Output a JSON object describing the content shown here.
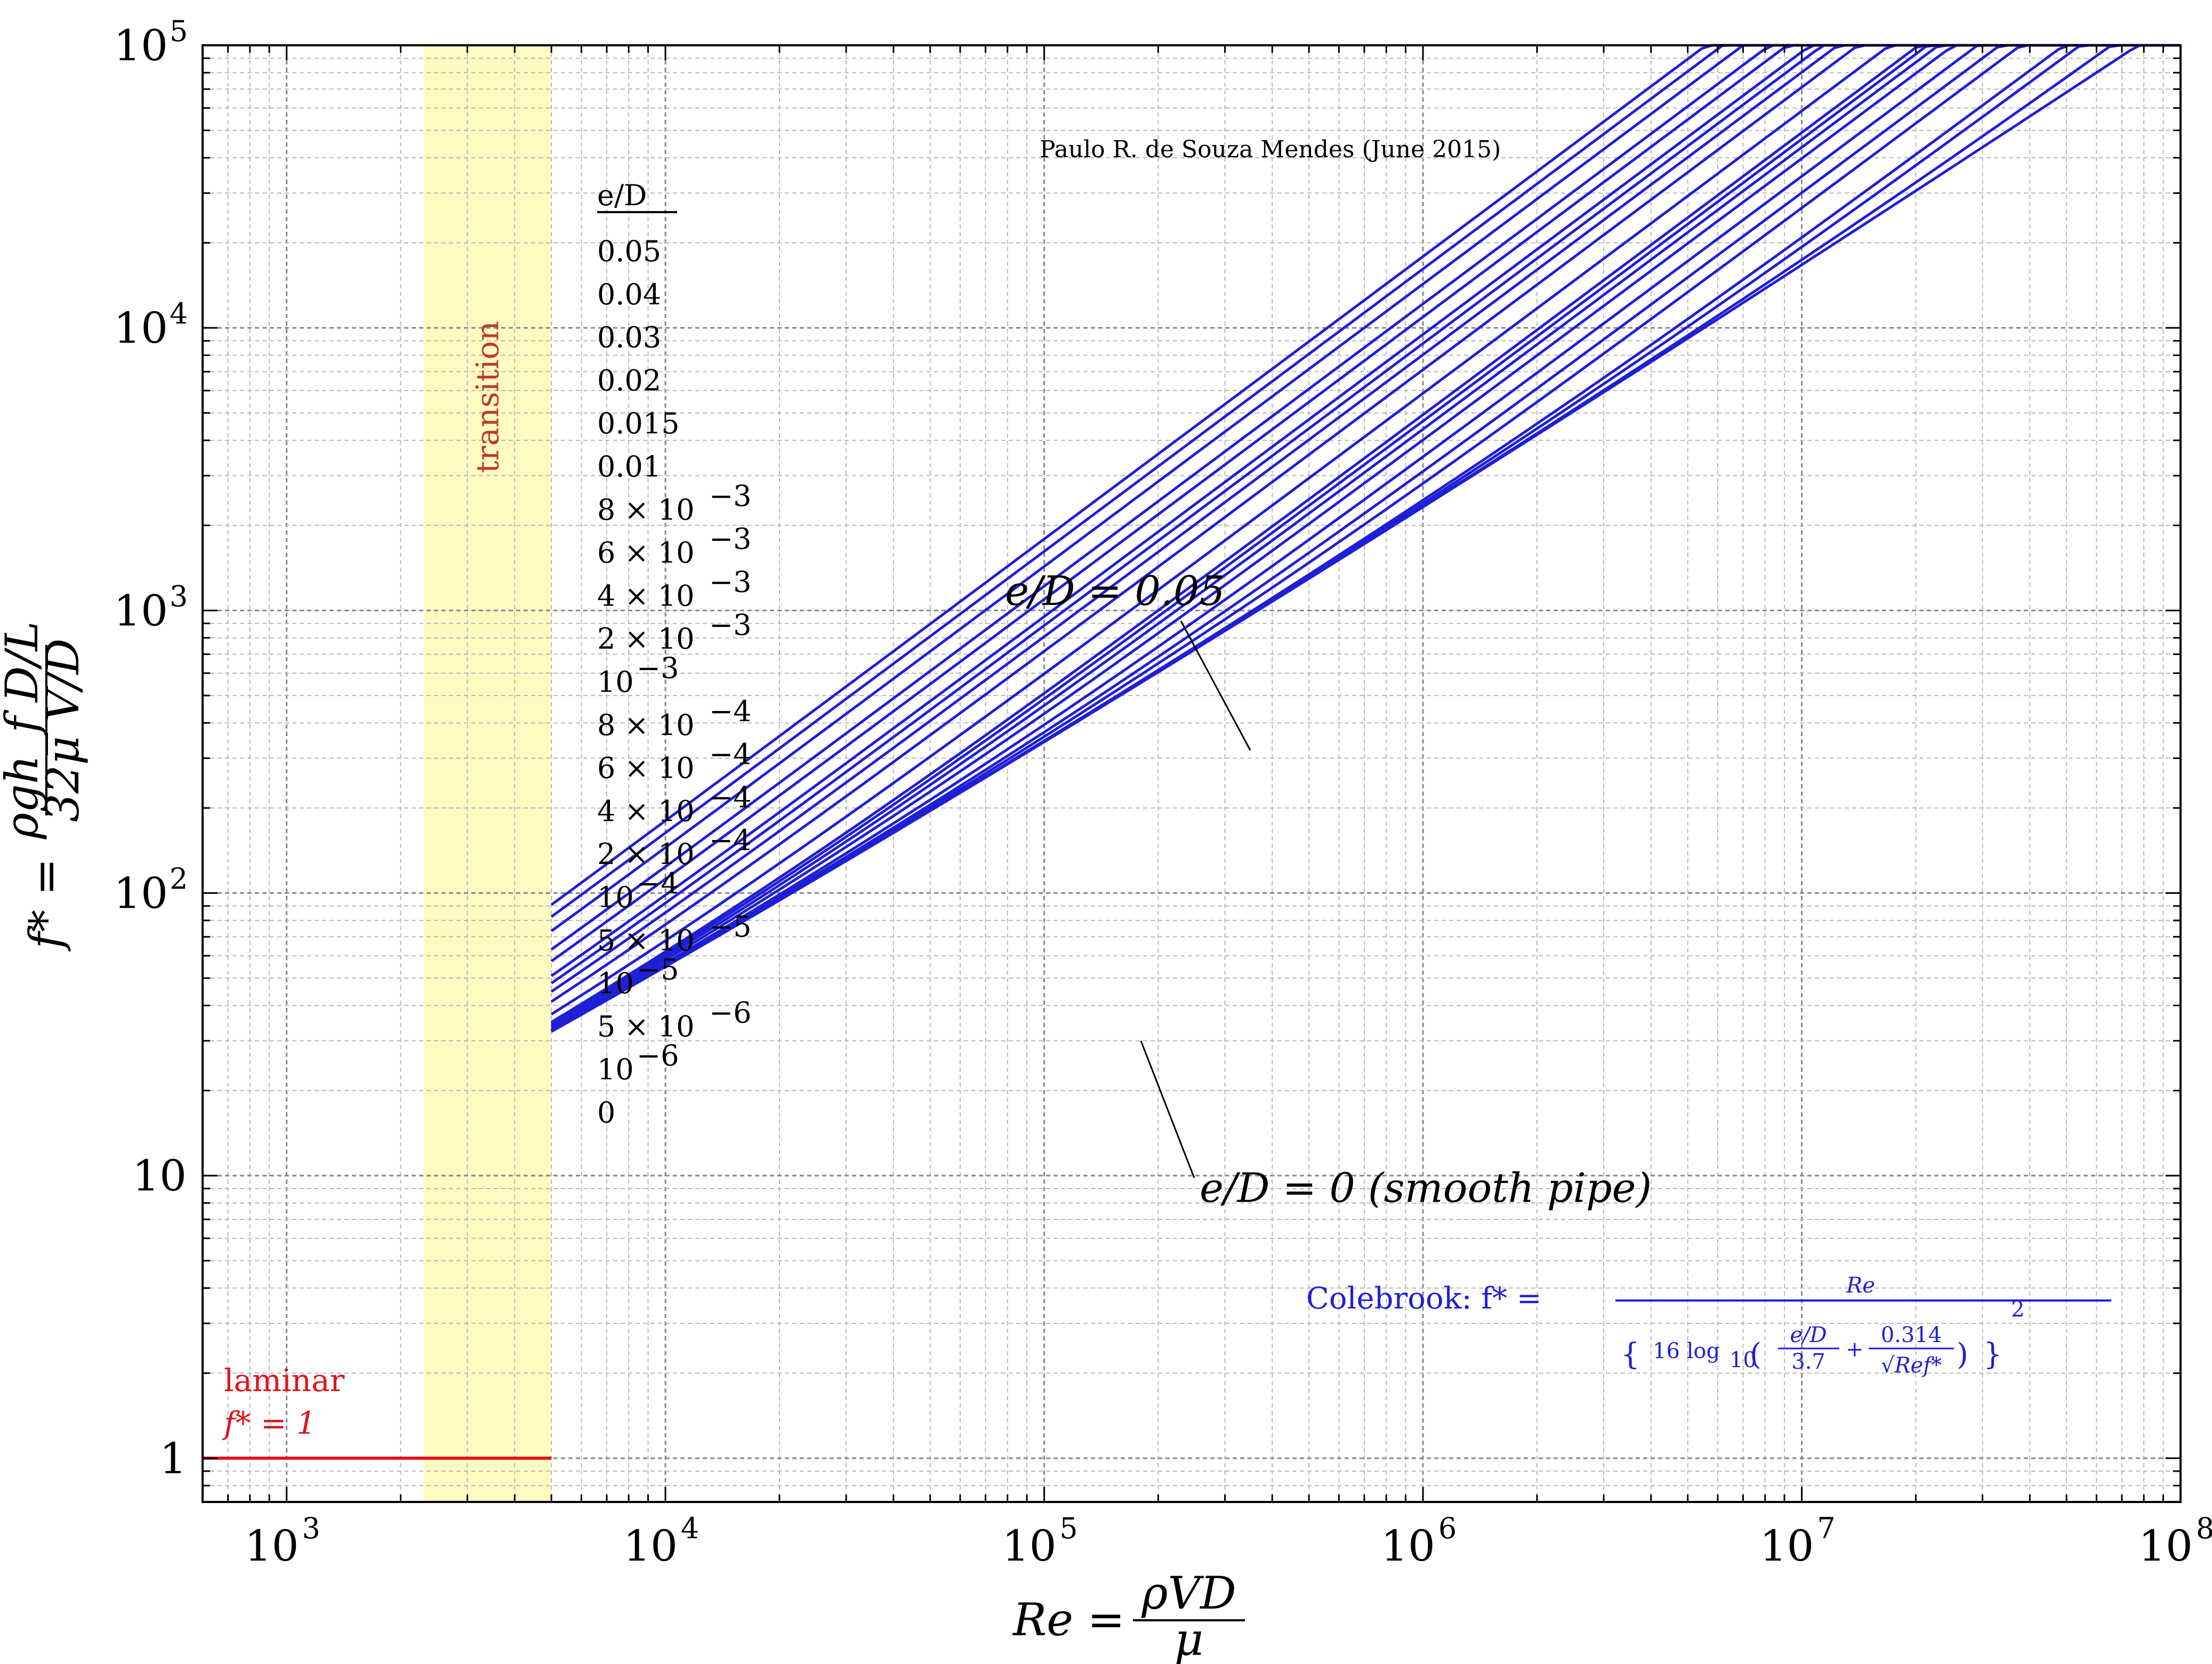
{
  "chart_data": {
    "type": "line",
    "scale": {
      "x": "log",
      "y": "log"
    },
    "xlim": [
      600,
      100000000
    ],
    "ylim": [
      0.7,
      100000
    ],
    "grid": true,
    "x_ticks": [
      {
        "value": 1000,
        "base": "10",
        "exp": "3"
      },
      {
        "value": 10000,
        "base": "10",
        "exp": "4"
      },
      {
        "value": 100000,
        "base": "10",
        "exp": "5"
      },
      {
        "value": 1000000,
        "base": "10",
        "exp": "6"
      },
      {
        "value": 10000000,
        "base": "10",
        "exp": "7"
      },
      {
        "value": 100000000,
        "base": "10",
        "exp": "8"
      }
    ],
    "y_ticks": [
      {
        "value": 1,
        "base": "1",
        "exp": ""
      },
      {
        "value": 10,
        "base": "10",
        "exp": ""
      },
      {
        "value": 100,
        "base": "10",
        "exp": "2"
      },
      {
        "value": 1000,
        "base": "10",
        "exp": "3"
      },
      {
        "value": 10000,
        "base": "10",
        "exp": "4"
      },
      {
        "value": 100000,
        "base": "10",
        "exp": "5"
      }
    ],
    "xlabel": {
      "lhs": "Re =",
      "num": "ρVD",
      "den": "μ"
    },
    "ylabel": {
      "lhs": "f* =",
      "num": "ρgh_f D/L",
      "den": "32μ V/D"
    },
    "credit": "Paulo R. de Souza Mendes (June 2015)",
    "legend": {
      "title": "e/D",
      "entries": [
        {
          "base": "0.05",
          "exp": ""
        },
        {
          "base": "0.04",
          "exp": ""
        },
        {
          "base": "0.03",
          "exp": ""
        },
        {
          "base": "0.02",
          "exp": ""
        },
        {
          "base": "0.015",
          "exp": ""
        },
        {
          "base": "0.01",
          "exp": ""
        },
        {
          "base": "8 × 10",
          "exp": "−3"
        },
        {
          "base": "6 × 10",
          "exp": "−3"
        },
        {
          "base": "4 × 10",
          "exp": "−3"
        },
        {
          "base": "2 × 10",
          "exp": "−3"
        },
        {
          "base": "10",
          "exp": "−3"
        },
        {
          "base": "8 × 10",
          "exp": "−4"
        },
        {
          "base": "6 × 10",
          "exp": "−4"
        },
        {
          "base": "4 × 10",
          "exp": "−4"
        },
        {
          "base": "2 × 10",
          "exp": "−4"
        },
        {
          "base": "10",
          "exp": "−4"
        },
        {
          "base": "5 × 10",
          "exp": "−5"
        },
        {
          "base": "10",
          "exp": "−5"
        },
        {
          "base": "5 × 10",
          "exp": "−6"
        },
        {
          "base": "10",
          "exp": "−6"
        },
        {
          "base": "0",
          "exp": ""
        }
      ]
    },
    "roughness_values": [
      0.05,
      0.04,
      0.03,
      0.02,
      0.015,
      0.01,
      0.008,
      0.006,
      0.004,
      0.002,
      0.001,
      0.0008,
      0.0006,
      0.0004,
      0.0002,
      0.0001,
      5e-05,
      1e-05,
      5e-06,
      1e-06,
      0
    ],
    "turbulent_re_range": [
      5000,
      100000000
    ],
    "transition": {
      "label": "transition",
      "x_range": [
        2300,
        5000
      ],
      "color": "#fdfbc2"
    },
    "laminar": {
      "label": "laminar",
      "equation": "f* = 1",
      "x_range": [
        600,
        5000
      ],
      "y": 1,
      "color": "#e0141e"
    },
    "curve_color": "#1f1fd6",
    "annotations": [
      {
        "text": "e/D = 0.05",
        "target_x": 350000,
        "target_y": 320
      },
      {
        "text": "e/D = 0 (smooth pipe)",
        "target_x": 180000,
        "target_y": 30
      }
    ],
    "formula": {
      "lead": "Colebrook:  f* =",
      "num": "Re",
      "den_prefix": "16 log",
      "den_sub": "10",
      "frac1_num": "e/D",
      "frac1_den": "3.7",
      "plus": "+",
      "frac2_num": "0.314",
      "frac2_den": "√Ref*",
      "power": "2"
    }
  }
}
